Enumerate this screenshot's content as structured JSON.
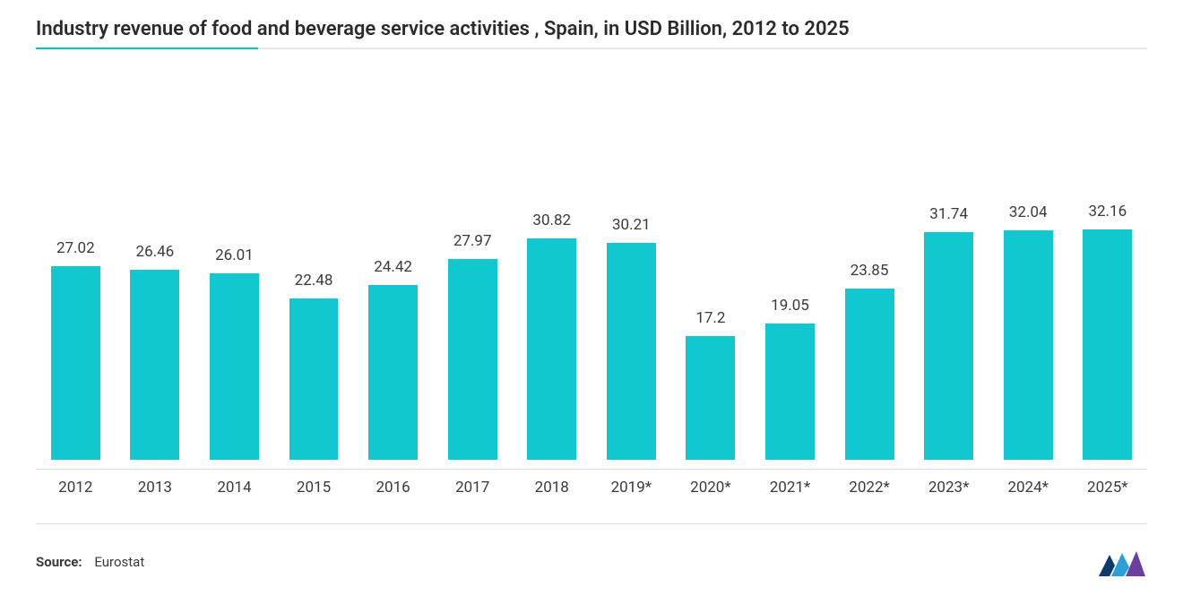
{
  "chart": {
    "type": "bar",
    "title": "Industry revenue of food and beverage service activities , Spain, in USD Billion, 2012 to 2025",
    "categories": [
      "2012",
      "2013",
      "2014",
      "2015",
      "2016",
      "2017",
      "2018",
      "2019*",
      "2020*",
      "2021*",
      "2022*",
      "2023*",
      "2024*",
      "2025*"
    ],
    "values": [
      27.02,
      26.46,
      26.01,
      22.48,
      24.42,
      27.97,
      30.82,
      30.21,
      17.2,
      19.05,
      23.85,
      31.74,
      32.04,
      32.16
    ],
    "bar_color": "#11c8d1",
    "value_label_color": "#3a3a3a",
    "axis_label_color": "#3a3a3a",
    "background_color": "#ffffff",
    "axis_line_color": "#e0e0e0",
    "title_color": "#2b2b2b",
    "title_fontsize": 22,
    "label_fontsize": 17,
    "y_max_ref": 35,
    "bar_width_ratio": 0.62
  },
  "source": {
    "label": "Source:",
    "value": "Eurostat"
  },
  "logo": {
    "bg": "#ffffff",
    "bar1": "#0a3b6c",
    "bar2": "#2aa0d8",
    "bar3": "#6b3fa0"
  }
}
